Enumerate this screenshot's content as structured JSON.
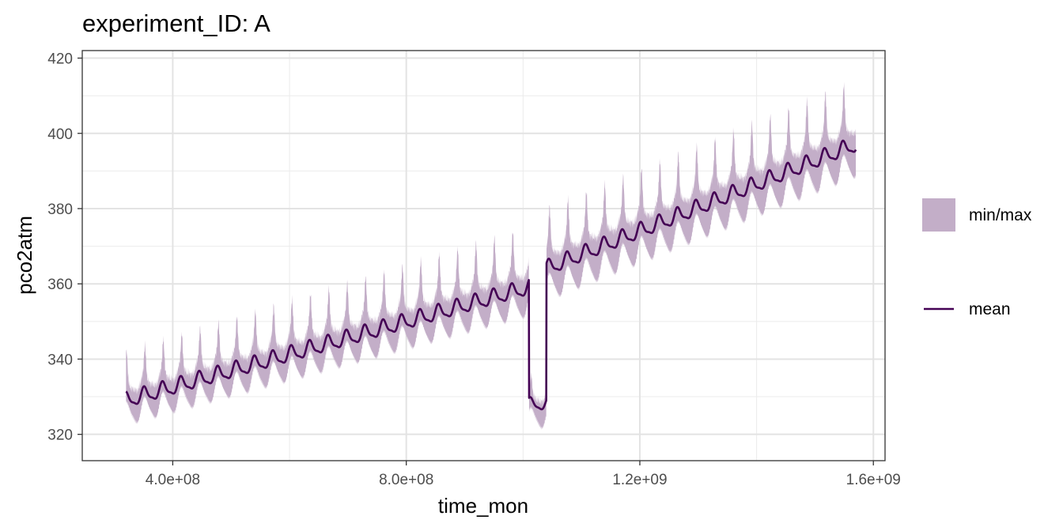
{
  "chart_data": {
    "type": "line",
    "title": "experiment_ID: A",
    "xlabel": "time_mon",
    "ylabel": "pco2atm",
    "xlim": [
      245000000,
      1620000000
    ],
    "ylim": [
      313,
      422
    ],
    "x_ticks": [
      400000000,
      800000000,
      1200000000,
      1600000000
    ],
    "x_tick_labels": [
      "4.0e+08",
      "8.0e+08",
      "1.2e+09",
      "1.6e+09"
    ],
    "y_ticks": [
      320,
      340,
      360,
      380,
      400,
      420
    ],
    "y_tick_labels": [
      "320",
      "340",
      "360",
      "380",
      "400",
      "420"
    ],
    "grid": true,
    "legend_position": "right",
    "legend": [
      {
        "key": "ribbon",
        "label": "min/max",
        "color": "#c3aec8"
      },
      {
        "key": "line",
        "label": "mean",
        "color": "#440154"
      }
    ],
    "series_rule": {
      "x_start": 320000000,
      "x_end": 1570000000,
      "cycle_length": 31500000,
      "segments": [
        {
          "x_from": 320000000,
          "x_to": 1010000000,
          "mean_from": 329,
          "mean_to": 359,
          "cycle_amplitude": 2.3,
          "max_above_mean": [
            11,
            14
          ],
          "min_below_mean": [
            5,
            6
          ]
        },
        {
          "x_from": 1010000000,
          "x_to": 1040000000,
          "mean_from": 328,
          "mean_to": 328,
          "cycle_amplitude": 1.8,
          "max_above_mean": [
            6,
            6
          ],
          "min_below_mean": [
            5,
            5
          ]
        },
        {
          "x_from": 1040000000,
          "x_to": 1570000000,
          "mean_from": 364,
          "mean_to": 397,
          "cycle_amplitude": 2.3,
          "max_above_mean": [
            14,
            15
          ],
          "min_below_mean": [
            7,
            7
          ]
        }
      ]
    }
  }
}
